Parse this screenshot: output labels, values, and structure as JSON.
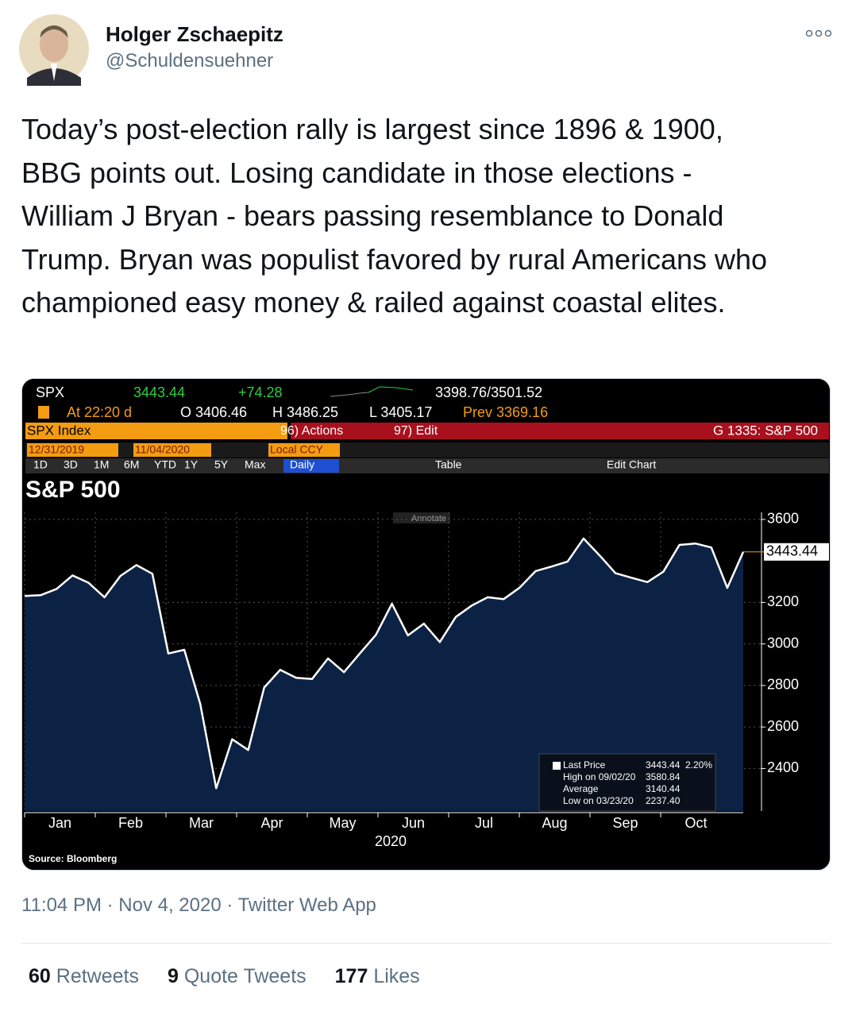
{
  "tweet": {
    "name": "Holger Zschaepitz",
    "handle": "@Schuldensuehner",
    "text": "Today’s post-election rally is largest since 1896 & 1900, BBG points out. Losing candidate in those elections - William J Bryan - bears passing resemblance to Donald Trump. Bryan was populist favored by rural Americans who championed easy money & railed against coastal elites.",
    "timestamp": "11:04 PM · Nov 4, 2020 · Twitter Web App",
    "stats": [
      {
        "count": 60,
        "label": "Retweets"
      },
      {
        "count": 9,
        "label": "Quote Tweets"
      },
      {
        "count": 177,
        "label": "Likes"
      }
    ]
  },
  "terminal": {
    "ticker": "SPX",
    "price": "3443.44",
    "change": "+74.28",
    "range": "3398.76/3501.52",
    "time": "At 22:20 d",
    "open": "O 3406.46",
    "high": "H 3486.25",
    "low": "L 3405.17",
    "prev": "Prev 3369.16",
    "security": "SPX Index",
    "actions": "96) Actions",
    "edit": "97) Edit",
    "page": "G 1335: S&P 500",
    "start_date": "12/31/2019",
    "end_date": "11/04/2020",
    "currency": "Local CCY",
    "periods": [
      "1D",
      "3D",
      "1M",
      "6M",
      "YTD",
      "1Y",
      "5Y",
      "Max"
    ],
    "frequency": "Daily",
    "table": "Table",
    "edit_chart": "Edit Chart",
    "annotate": "Annotate"
  },
  "chart_data": {
    "type": "area",
    "title": "S&P 500",
    "xtick_labels": [
      "Jan",
      "Feb",
      "Mar",
      "Apr",
      "May",
      "Jun",
      "Jul",
      "Aug",
      "Sep",
      "Oct"
    ],
    "x_label": "2020",
    "values": [
      3231,
      3235,
      3265,
      3330,
      3295,
      3225,
      3328,
      3380,
      3338,
      2954,
      2972,
      2711,
      2305,
      2541,
      2489,
      2790,
      2875,
      2837,
      2831,
      2930,
      2864,
      2955,
      3044,
      3194,
      3041,
      3098,
      3009,
      3130,
      3185,
      3225,
      3216,
      3271,
      3351,
      3373,
      3397,
      3508,
      3427,
      3341,
      3319,
      3298,
      3348,
      3477,
      3484,
      3465,
      3270,
      3443.44
    ],
    "color": "#ffffff",
    "fill": "#0c2245",
    "ylim": [
      2195,
      3634
    ],
    "yticks": [
      2400,
      2600,
      2800,
      3000,
      3200,
      3600
    ],
    "grid": true,
    "legend": [
      {
        "label": "Last Price",
        "value": "3443.44",
        "change": "2.20%"
      },
      {
        "label": "High on 09/02/20",
        "value": "3580.84"
      },
      {
        "label": "Average",
        "value": "3140.44"
      },
      {
        "label": "Low on 03/23/20",
        "value": "2237.40"
      }
    ],
    "source": "Source: Bloomberg"
  }
}
